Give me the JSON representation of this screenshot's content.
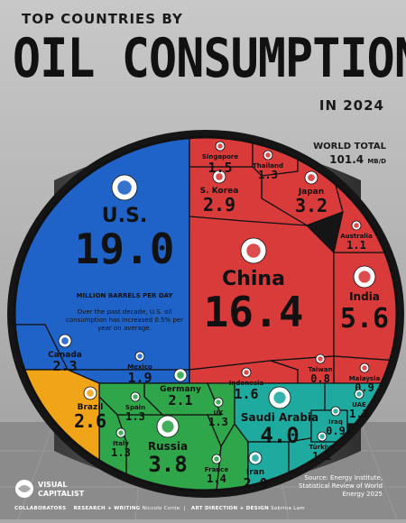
{
  "header": {
    "line1": "TOP COUNTRIES BY",
    "line2": "OIL CONSUMPTION",
    "line3": "IN 2024"
  },
  "total": {
    "label": "WORLD TOTAL",
    "value": "101.4",
    "unit": "MB/D"
  },
  "us_note": {
    "unit_label": "MILLION BARRELS PER DAY",
    "text": "Over the past decade, U.S. oil consumption has increased 0.5% per year on average."
  },
  "footer": {
    "source": "Source: Energy Institute, Statistical Review of World Energy 2025",
    "collaborators": "COLLABORATORS",
    "research_writing": "RESEARCH + WRITING",
    "writer": "Niccolo Conte",
    "art_direction": "ART DIRECTION + DESIGN",
    "designer": "Sabrina Lam",
    "logo_line1": "VISUAL",
    "logo_line2": "CAPITALIST"
  },
  "colors": {
    "background": "#a9a9a9",
    "north_america": "#1f63c8",
    "asia": "#d93a3a",
    "europe": "#2fa64a",
    "middle_east": "#1faaa0",
    "south_america": "#f0a418",
    "border": "#111111"
  },
  "chart_data": {
    "type": "treemap",
    "title": "TOP COUNTRIES BY OIL CONSUMPTION IN 2024",
    "unit": "million barrels per day",
    "total": 101.4,
    "regions": [
      {
        "region": "North America",
        "items": [
          {
            "label": "U.S.",
            "value": 19.0
          },
          {
            "label": "Canada",
            "value": 2.3
          },
          {
            "label": "Mexico",
            "value": 1.9
          }
        ]
      },
      {
        "region": "Asia",
        "items": [
          {
            "label": "China",
            "value": 16.4
          },
          {
            "label": "India",
            "value": 5.6
          },
          {
            "label": "Japan",
            "value": 3.2
          },
          {
            "label": "S. Korea",
            "value": 2.9
          },
          {
            "label": "Indonesia",
            "value": 1.6
          },
          {
            "label": "Singapore",
            "value": 1.5
          },
          {
            "label": "Thailand",
            "value": 1.3
          },
          {
            "label": "Australia",
            "value": 1.1
          },
          {
            "label": "Malaysia",
            "value": 0.9
          },
          {
            "label": "Taiwan",
            "value": 0.8
          }
        ]
      },
      {
        "region": "Europe",
        "items": [
          {
            "label": "Russia",
            "value": 3.8
          },
          {
            "label": "Germany",
            "value": 2.1
          },
          {
            "label": "France",
            "value": 1.4
          },
          {
            "label": "Spain",
            "value": 1.3
          },
          {
            "label": "UK",
            "value": 1.3
          },
          {
            "label": "Italy",
            "value": 1.3
          }
        ]
      },
      {
        "region": "Middle East",
        "items": [
          {
            "label": "Saudi Arabia",
            "value": 4.0
          },
          {
            "label": "Iran",
            "value": 2.0
          },
          {
            "label": "UAE",
            "value": 1.2
          },
          {
            "label": "Türkiye",
            "value": 1.2
          },
          {
            "label": "Iraq",
            "value": 0.9
          }
        ]
      },
      {
        "region": "South America",
        "items": [
          {
            "label": "Brazil",
            "value": 2.6
          }
        ]
      }
    ]
  }
}
